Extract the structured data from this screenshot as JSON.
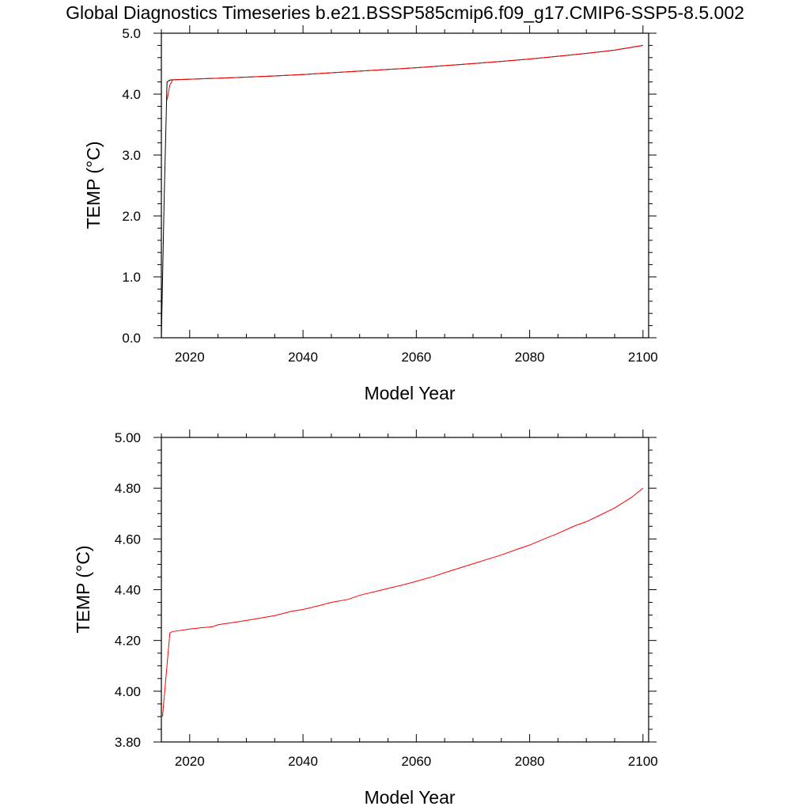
{
  "title": "Global Diagnostics Timeseries b.e21.BSSP585cmip6.f09_g17.CMIP6-SSP5-8.5.002",
  "chart_data": [
    {
      "type": "line",
      "xlabel": "Model Year",
      "ylabel": "TEMP (°C)",
      "xlim": [
        2015,
        2101
      ],
      "ylim": [
        0.0,
        5.0
      ],
      "x_ticks": [
        "2020",
        "2040",
        "2060",
        "2080",
        "2100"
      ],
      "y_ticks": [
        "0.0",
        "1.0",
        "2.0",
        "3.0",
        "4.0",
        "5.0"
      ],
      "grid": false,
      "series": [
        {
          "color": "#000000",
          "x": [
            2015.0,
            2015.5,
            2016.0,
            2016.5,
            2017,
            2020,
            2025,
            2030,
            2035,
            2040,
            2045,
            2050,
            2055,
            2060,
            2065,
            2070,
            2075,
            2080,
            2085,
            2090,
            2095,
            2100
          ],
          "y": [
            0.0,
            2.3,
            4.2,
            4.23,
            4.235,
            4.245,
            4.262,
            4.279,
            4.298,
            4.322,
            4.35,
            4.378,
            4.405,
            4.433,
            4.467,
            4.502,
            4.537,
            4.576,
            4.622,
            4.668,
            4.722,
            4.8
          ]
        },
        {
          "color": "#ff0000",
          "x": [
            2016.0,
            2016.5,
            2017,
            2020,
            2025,
            2030,
            2035,
            2040,
            2045,
            2050,
            2055,
            2060,
            2065,
            2070,
            2075,
            2080,
            2085,
            2090,
            2095,
            2100
          ],
          "y": [
            3.9,
            4.15,
            4.235,
            4.245,
            4.262,
            4.279,
            4.298,
            4.322,
            4.35,
            4.378,
            4.405,
            4.433,
            4.467,
            4.502,
            4.537,
            4.576,
            4.622,
            4.668,
            4.722,
            4.8
          ]
        }
      ]
    },
    {
      "type": "line",
      "xlabel": "Model Year",
      "ylabel": "TEMP (°C)",
      "xlim": [
        2015,
        2101
      ],
      "ylim": [
        3.8,
        5.0
      ],
      "x_ticks": [
        "2020",
        "2040",
        "2060",
        "2080",
        "2100"
      ],
      "y_ticks": [
        "3.80",
        "4.00",
        "4.20",
        "4.40",
        "4.60",
        "4.80",
        "5.00"
      ],
      "grid": false,
      "series": [
        {
          "color": "#ff0000",
          "x": [
            2015.2,
            2016.5,
            2017,
            2020,
            2022,
            2024,
            2025,
            2028,
            2030,
            2033,
            2035,
            2038,
            2040,
            2043,
            2045,
            2048,
            2050,
            2053,
            2055,
            2058,
            2060,
            2063,
            2065,
            2068,
            2070,
            2073,
            2075,
            2078,
            2080,
            2083,
            2085,
            2088,
            2090,
            2093,
            2095,
            2098,
            2100
          ],
          "y": [
            3.9,
            4.23,
            4.235,
            4.245,
            4.25,
            4.254,
            4.262,
            4.272,
            4.279,
            4.29,
            4.298,
            4.315,
            4.322,
            4.338,
            4.35,
            4.362,
            4.378,
            4.394,
            4.405,
            4.421,
            4.433,
            4.452,
            4.467,
            4.488,
            4.502,
            4.523,
            4.537,
            4.561,
            4.576,
            4.604,
            4.622,
            4.652,
            4.668,
            4.7,
            4.722,
            4.764,
            4.8
          ]
        }
      ]
    }
  ]
}
